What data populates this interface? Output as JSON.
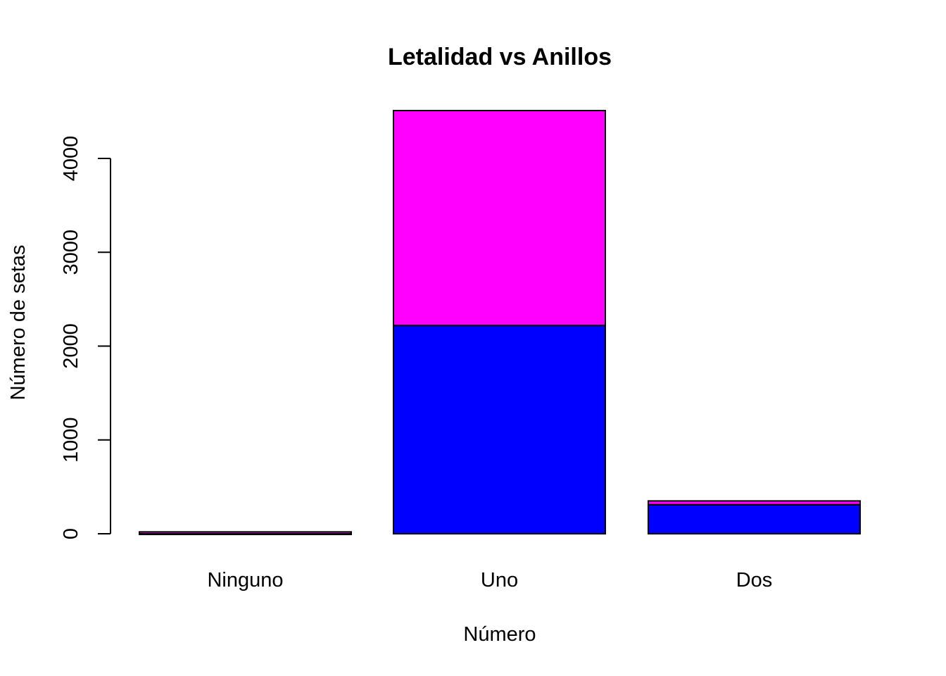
{
  "chart_data": {
    "type": "bar",
    "stacked": true,
    "title": "Letalidad vs Anillos",
    "xlabel": "Número",
    "ylabel": "Número de setas",
    "categories": [
      "Ninguno",
      "Uno",
      "Dos"
    ],
    "series": [
      {
        "color": "#0000ff",
        "values": [
          0,
          2220,
          310
        ]
      },
      {
        "color": "#ff00ff",
        "values": [
          20,
          2290,
          40
        ]
      }
    ],
    "yticks": [
      0,
      1000,
      2000,
      3000,
      4000
    ],
    "ylim": [
      0,
      4500
    ],
    "grid": false,
    "legend": "none"
  }
}
